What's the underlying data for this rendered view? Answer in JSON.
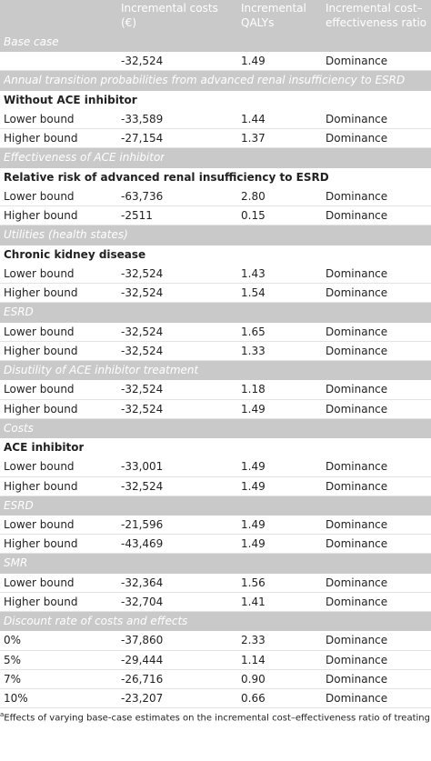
{
  "header": {
    "columns": [
      [
        "Incremental costs",
        "(€)"
      ],
      [
        "Incremental",
        "QALYs"
      ],
      [
        "Incremental cost–",
        "effectiveness ratio"
      ]
    ]
  },
  "sections": [
    {
      "title": "Base case",
      "rows": [
        {
          "cost": "-32,524",
          "qaly": "1.49",
          "icer": "Dominance"
        }
      ]
    },
    {
      "title": "Annual transition probabilities from advanced renal insufficiency to ESRD",
      "heading": "Without ACE inhibitor",
      "rows": [
        {
          "label": "Lower bound",
          "cost": "-33,589",
          "qaly": "1.44",
          "icer": "Dominance"
        },
        {
          "label": "Higher bound",
          "cost": "-27,154",
          "qaly": "1.37",
          "icer": "Dominance"
        }
      ]
    },
    {
      "title": "Effectiveness of ACE inhibitor",
      "heading": "Relative risk of advanced renal insufficiency to ESRD",
      "rows": [
        {
          "label": "Lower bound",
          "cost": "-63,736",
          "qaly": "2.80",
          "icer": "Dominance"
        },
        {
          "label": "Higher bound",
          "cost": "-2511",
          "qaly": "0.15",
          "icer": "Dominance"
        }
      ]
    },
    {
      "title": "Utilities (health states)",
      "heading": "Chronic kidney disease",
      "rows": [
        {
          "label": "Lower bound",
          "cost": "-32,524",
          "qaly": "1.43",
          "icer": "Dominance"
        },
        {
          "label": "Higher bound",
          "cost": "-32,524",
          "qaly": "1.54",
          "icer": "Dominance"
        }
      ]
    },
    {
      "title": "ESRD",
      "rows": [
        {
          "label": "Lower bound",
          "cost": "-32,524",
          "qaly": "1.65",
          "icer": "Dominance"
        },
        {
          "label": "Higher bound",
          "cost": "-32,524",
          "qaly": "1.33",
          "icer": "Dominance"
        }
      ]
    },
    {
      "title": "Disutility of ACE inhibitor treatment",
      "rows": [
        {
          "label": "Lower bound",
          "cost": "-32,524",
          "qaly": "1.18",
          "icer": "Dominance"
        },
        {
          "label": "Higher bound",
          "cost": "-32,524",
          "qaly": "1.49",
          "icer": "Dominance"
        }
      ]
    },
    {
      "title": "Costs",
      "heading": "ACE inhibitor",
      "rows": [
        {
          "label": "Lower bound",
          "cost": "-33,001",
          "qaly": "1.49",
          "icer": "Dominance"
        },
        {
          "label": "Higher bound",
          "cost": "-32,524",
          "qaly": "1.49",
          "icer": "Dominance"
        }
      ]
    },
    {
      "title": "ESRD",
      "rows": [
        {
          "label": "Lower bound",
          "cost": "-21,596",
          "qaly": "1.49",
          "icer": "Dominance"
        },
        {
          "label": "Higher bound",
          "cost": "-43,469",
          "qaly": "1.49",
          "icer": "Dominance"
        }
      ]
    },
    {
      "title": "SMR",
      "rows": [
        {
          "label": "Lower bound",
          "cost": "-32,364",
          "qaly": "1.56",
          "icer": "Dominance"
        },
        {
          "label": "Higher bound",
          "cost": "-32,704",
          "qaly": "1.41",
          "icer": "Dominance"
        }
      ]
    },
    {
      "title": "Discount rate of costs and effects",
      "rows": [
        {
          "label": "0%",
          "cost": "-37,860",
          "qaly": "2.33",
          "icer": "Dominance"
        },
        {
          "label": "5%",
          "cost": "-29,444",
          "qaly": "1.14",
          "icer": "Dominance"
        },
        {
          "label": "7%",
          "cost": "-26,716",
          "qaly": "0.90",
          "icer": "Dominance"
        },
        {
          "label": "10%",
          "cost": "-23,207",
          "qaly": "0.66",
          "icer": "Dominance"
        }
      ]
    }
  ],
  "footnote": {
    "marker": "a",
    "text": "Effects of varying base-case estimates on the incremental cost–effectiveness ratio of treating all patien"
  }
}
